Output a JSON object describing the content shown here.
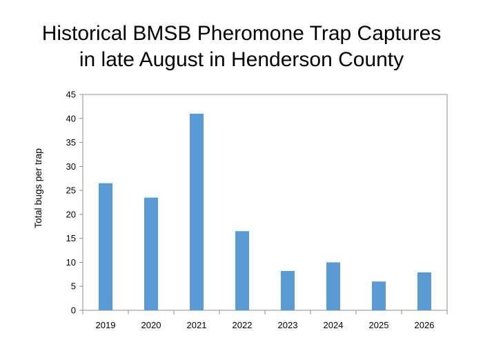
{
  "chart_data": {
    "type": "bar",
    "title_lines": [
      "Historical BMSB Pheromone Trap Captures",
      "in late August in Henderson County"
    ],
    "xlabel": "",
    "ylabel": "Total bugs per trap",
    "categories": [
      "2019",
      "2020",
      "2021",
      "2022",
      "2023",
      "2024",
      "2025",
      "2026"
    ],
    "values": [
      26.5,
      23.5,
      41,
      16.5,
      8.2,
      10,
      6,
      7.9
    ],
    "ylim": [
      0,
      45
    ],
    "yticks": [
      "0",
      "5",
      "10",
      "15",
      "20",
      "25",
      "30",
      "35",
      "40",
      "45"
    ],
    "grid": false,
    "legend": "none",
    "bar_color": "#5b9bd5"
  }
}
